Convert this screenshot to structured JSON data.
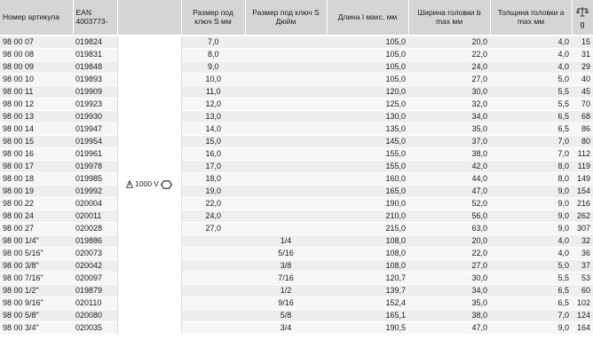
{
  "headers": {
    "article": "Номер артикула",
    "ean": "EAN 4003773-",
    "size_s": "Размер под ключ S мм",
    "size_s_inch": "Размер под ключ S Дюйм",
    "length": "Длина l макс. мм",
    "head_width": "Ширина головки b max мм",
    "head_thickness": "Толщина головки a max мм",
    "weight_unit": "g"
  },
  "vde_label": "1000 V",
  "rows": [
    {
      "article": "98 00 07",
      "ean": "019824",
      "s": "7,0",
      "inch": "",
      "length": "105,0",
      "width": "20,0",
      "thick": "4,0",
      "g": "15"
    },
    {
      "article": "98 00 08",
      "ean": "019831",
      "s": "8,0",
      "inch": "",
      "length": "105,0",
      "width": "22,0",
      "thick": "4,0",
      "g": "31"
    },
    {
      "article": "98 00 09",
      "ean": "019848",
      "s": "9,0",
      "inch": "",
      "length": "105,0",
      "width": "24,0",
      "thick": "4,0",
      "g": "29"
    },
    {
      "article": "98 00 10",
      "ean": "019893",
      "s": "10,0",
      "inch": "",
      "length": "105,0",
      "width": "27,0",
      "thick": "5,0",
      "g": "40"
    },
    {
      "article": "98 00 11",
      "ean": "019909",
      "s": "11,0",
      "inch": "",
      "length": "120,0",
      "width": "30,0",
      "thick": "5,5",
      "g": "45"
    },
    {
      "article": "98 00 12",
      "ean": "019923",
      "s": "12,0",
      "inch": "",
      "length": "125,0",
      "width": "32,0",
      "thick": "5,5",
      "g": "70"
    },
    {
      "article": "98 00 13",
      "ean": "019930",
      "s": "13,0",
      "inch": "",
      "length": "130,0",
      "width": "34,0",
      "thick": "6,5",
      "g": "68"
    },
    {
      "article": "98 00 14",
      "ean": "019947",
      "s": "14,0",
      "inch": "",
      "length": "135,0",
      "width": "35,0",
      "thick": "6,5",
      "g": "86"
    },
    {
      "article": "98 00 15",
      "ean": "019954",
      "s": "15,0",
      "inch": "",
      "length": "145,0",
      "width": "37,0",
      "thick": "7,0",
      "g": "80"
    },
    {
      "article": "98 00 16",
      "ean": "019961",
      "s": "16,0",
      "inch": "",
      "length": "155,0",
      "width": "38,0",
      "thick": "7,0",
      "g": "112"
    },
    {
      "article": "98 00 17",
      "ean": "019978",
      "s": "17,0",
      "inch": "",
      "length": "155,0",
      "width": "42,0",
      "thick": "8,0",
      "g": "119"
    },
    {
      "article": "98 00 18",
      "ean": "019985",
      "s": "18,0",
      "inch": "",
      "length": "160,0",
      "width": "44,0",
      "thick": "8,0",
      "g": "149"
    },
    {
      "article": "98 00 19",
      "ean": "019992",
      "s": "19,0",
      "inch": "",
      "length": "165,0",
      "width": "47,0",
      "thick": "9,0",
      "g": "154"
    },
    {
      "article": "98 00 22",
      "ean": "020004",
      "s": "22,0",
      "inch": "",
      "length": "190,0",
      "width": "52,0",
      "thick": "9,0",
      "g": "216"
    },
    {
      "article": "98 00 24",
      "ean": "020011",
      "s": "24,0",
      "inch": "",
      "length": "210,0",
      "width": "56,0",
      "thick": "9,0",
      "g": "262"
    },
    {
      "article": "98 00 27",
      "ean": "020028",
      "s": "27,0",
      "inch": "",
      "length": "215,0",
      "width": "63,0",
      "thick": "9,0",
      "g": "307"
    },
    {
      "article": "98 00 1/4\"",
      "ean": "019886",
      "s": "",
      "inch": "1/4",
      "length": "108,0",
      "width": "20,0",
      "thick": "4,0",
      "g": "32"
    },
    {
      "article": "98 00 5/16\"",
      "ean": "020073",
      "s": "",
      "inch": "5/16",
      "length": "108,0",
      "width": "22,0",
      "thick": "4,0",
      "g": "36"
    },
    {
      "article": "98 00 3/8\"",
      "ean": "020042",
      "s": "",
      "inch": "3/8",
      "length": "108,0",
      "width": "27,0",
      "thick": "5,0",
      "g": "37"
    },
    {
      "article": "98 00 7/16\"",
      "ean": "020097",
      "s": "",
      "inch": "7/16",
      "length": "120,7",
      "width": "30,0",
      "thick": "5,5",
      "g": "53"
    },
    {
      "article": "98 00 1/2\"",
      "ean": "019879",
      "s": "",
      "inch": "1/2",
      "length": "139,7",
      "width": "34,0",
      "thick": "6,5",
      "g": "60"
    },
    {
      "article": "98 00 9/16\"",
      "ean": "020110",
      "s": "",
      "inch": "9/16",
      "length": "152,4",
      "width": "35,0",
      "thick": "6,5",
      "g": "102"
    },
    {
      "article": "98 00 5/8\"",
      "ean": "020080",
      "s": "",
      "inch": "5/8",
      "length": "165,1",
      "width": "38,0",
      "thick": "7,0",
      "g": "124"
    },
    {
      "article": "98 00 3/4\"",
      "ean": "020035",
      "s": "",
      "inch": "3/4",
      "length": "190,5",
      "width": "47,0",
      "thick": "9,0",
      "g": "164"
    }
  ]
}
